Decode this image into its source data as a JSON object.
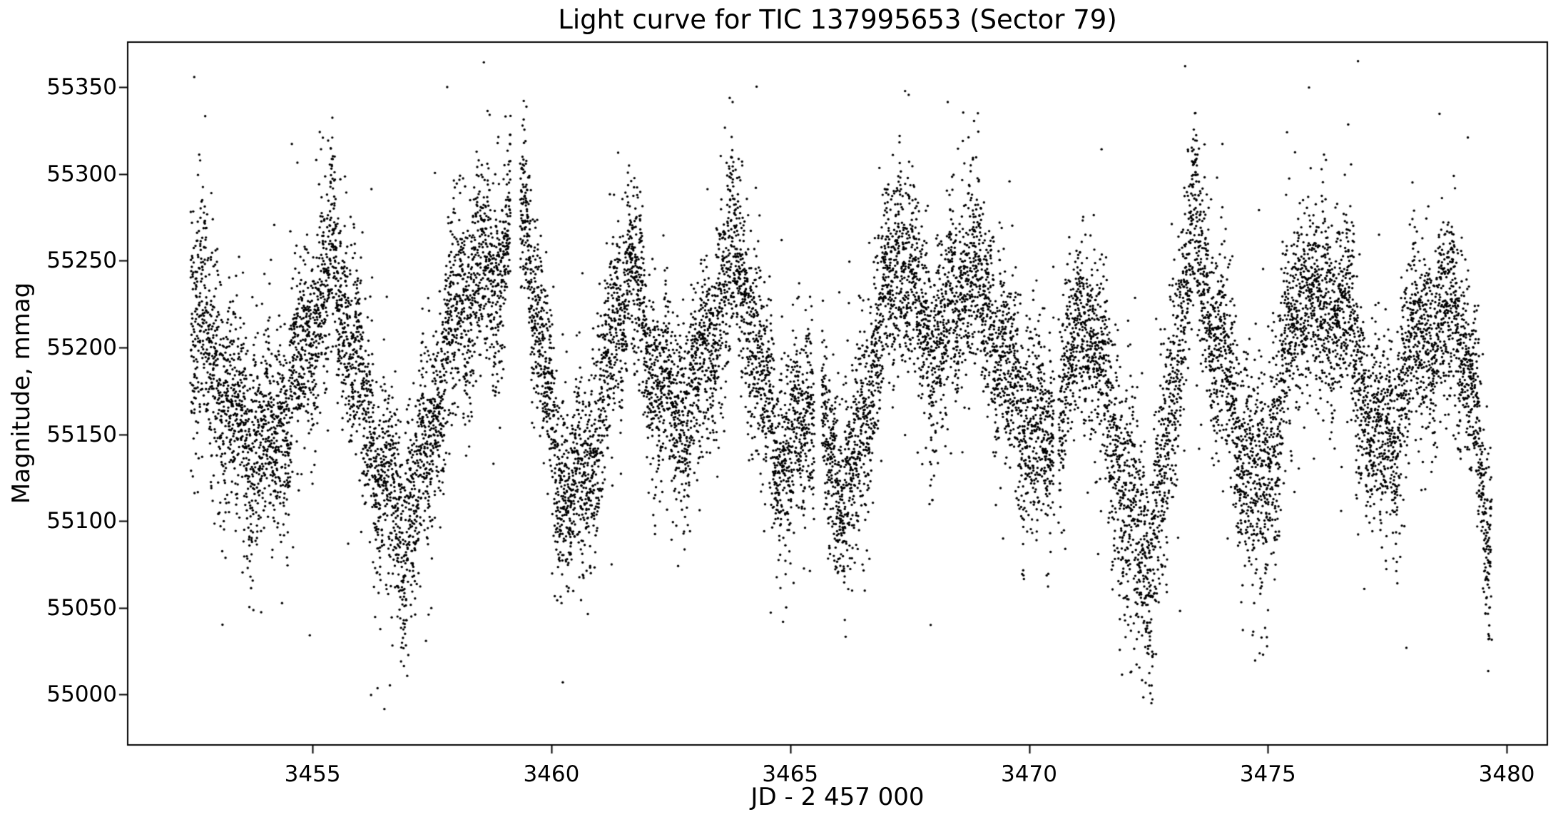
{
  "chart_data": {
    "type": "scatter",
    "title": "Light curve for TIC 137995653 (Sector 79)",
    "xlabel": "JD - 2 457 000",
    "ylabel": "Magnitude, mmag",
    "marker_color": "#000000",
    "background_color": "#ffffff",
    "axis_color": "#000000",
    "grid": "off",
    "legend": "none",
    "xlim": [
      3451.13,
      3480.85
    ],
    "ylim": [
      54971,
      55376
    ],
    "x_ticks": [
      3455,
      3460,
      3465,
      3470,
      3475,
      3480
    ],
    "y_ticks": [
      55000,
      55050,
      55100,
      55150,
      55200,
      55250,
      55300,
      55350
    ],
    "n_points": 16000,
    "t_start": 3452.45,
    "t_end": 3479.68,
    "gaps": [
      [
        3459.15,
        3459.35
      ],
      [
        3465.5,
        3465.66
      ],
      [
        3470.52,
        3470.62
      ]
    ],
    "marker_diameter_px": 3.4,
    "envelope_points_t_center_sigma": [
      [
        3452.45,
        55235,
        45
      ],
      [
        3452.8,
        55205,
        42
      ],
      [
        3453.3,
        55165,
        36
      ],
      [
        3453.9,
        55140,
        36
      ],
      [
        3454.5,
        55165,
        34
      ],
      [
        3455.0,
        55215,
        34
      ],
      [
        3455.45,
        55250,
        36
      ],
      [
        3455.9,
        55190,
        36
      ],
      [
        3456.4,
        55130,
        36
      ],
      [
        3456.9,
        55090,
        38
      ],
      [
        3457.4,
        55140,
        36
      ],
      [
        3457.9,
        55210,
        35
      ],
      [
        3458.4,
        55245,
        36
      ],
      [
        3458.9,
        55240,
        36
      ],
      [
        3459.15,
        55290,
        30
      ],
      [
        3459.45,
        55285,
        30
      ],
      [
        3459.7,
        55215,
        34
      ],
      [
        3460.1,
        55140,
        36
      ],
      [
        3460.45,
        55110,
        36
      ],
      [
        3460.9,
        55140,
        34
      ],
      [
        3461.3,
        55210,
        33
      ],
      [
        3461.65,
        55250,
        32
      ],
      [
        3462.1,
        55190,
        33
      ],
      [
        3462.6,
        55160,
        34
      ],
      [
        3463.1,
        55180,
        34
      ],
      [
        3463.6,
        55235,
        34
      ],
      [
        3463.95,
        55255,
        34
      ],
      [
        3464.4,
        55180,
        34
      ],
      [
        3464.9,
        55125,
        36
      ],
      [
        3465.35,
        55175,
        30
      ],
      [
        3465.8,
        55135,
        33
      ],
      [
        3466.25,
        55110,
        36
      ],
      [
        3466.8,
        55200,
        34
      ],
      [
        3467.3,
        55265,
        36
      ],
      [
        3467.8,
        55205,
        34
      ],
      [
        3468.2,
        55205,
        34
      ],
      [
        3468.75,
        55250,
        35
      ],
      [
        3469.3,
        55205,
        34
      ],
      [
        3469.9,
        55160,
        34
      ],
      [
        3470.35,
        55140,
        34
      ],
      [
        3470.85,
        55185,
        30
      ],
      [
        3471.2,
        55225,
        30
      ],
      [
        3471.7,
        55160,
        36
      ],
      [
        3472.2,
        55090,
        42
      ],
      [
        3472.55,
        55075,
        42
      ],
      [
        3473.0,
        55170,
        36
      ],
      [
        3473.4,
        55265,
        36
      ],
      [
        3473.9,
        55210,
        34
      ],
      [
        3474.4,
        55150,
        34
      ],
      [
        3474.85,
        55105,
        36
      ],
      [
        3475.3,
        55180,
        34
      ],
      [
        3475.75,
        55240,
        34
      ],
      [
        3476.15,
        55215,
        33
      ],
      [
        3476.55,
        55230,
        33
      ],
      [
        3477.0,
        55175,
        33
      ],
      [
        3477.45,
        55130,
        34
      ],
      [
        3477.95,
        55190,
        32
      ],
      [
        3478.25,
        55215,
        32
      ],
      [
        3478.5,
        55200,
        32
      ],
      [
        3478.9,
        55230,
        32
      ],
      [
        3479.3,
        55160,
        33
      ],
      [
        3479.65,
        55090,
        35
      ]
    ]
  }
}
